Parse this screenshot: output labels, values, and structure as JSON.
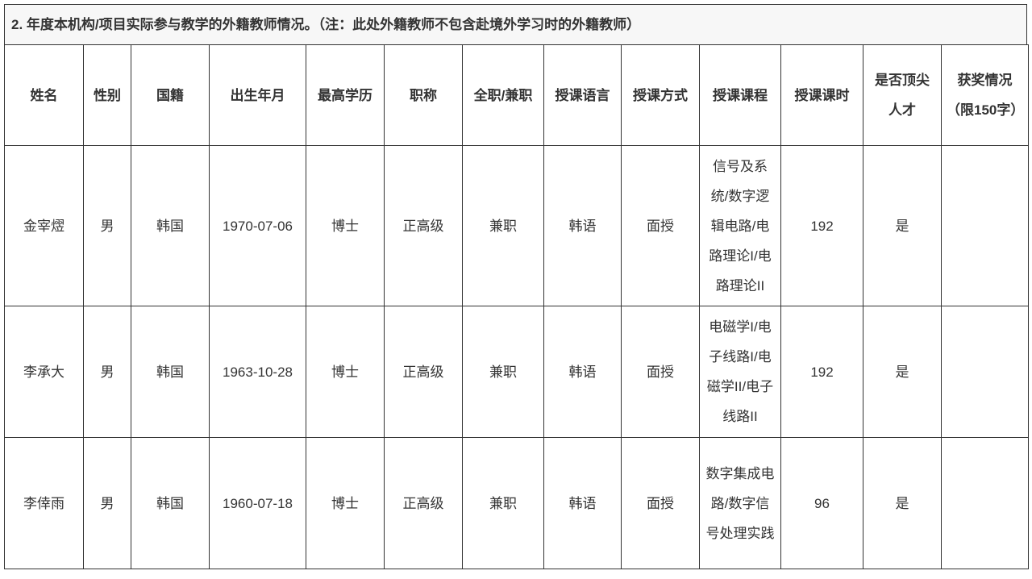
{
  "title": "2. 年度本机构/项目实际参与教学的外籍教师情况。（注：此处外籍教师不包含赴境外学习时的外籍教师）",
  "headers": [
    "姓名",
    "性别",
    "国籍",
    "出生年月",
    "最高学历",
    "职称",
    "全职/兼职",
    "授课语言",
    "授课方式",
    "授课课程",
    "授课课时",
    "是否顶尖人才",
    "获奖情况（限150字）"
  ],
  "rows": [
    [
      "金宰熤",
      "男",
      "韩国",
      "1970-07-06",
      "博士",
      "正高级",
      "兼职",
      "韩语",
      "面授",
      "信号及系统/数字逻辑电路/电路理论I/电路理论II",
      "192",
      "是",
      ""
    ],
    [
      "李承大",
      "男",
      "韩国",
      "1963-10-28",
      "博士",
      "正高级",
      "兼职",
      "韩语",
      "面授",
      "电磁学I/电子线路I/电磁学II/电子线路II",
      "192",
      "是",
      ""
    ],
    [
      "李倖雨",
      "男",
      "韩国",
      "1960-07-18",
      "博士",
      "正高级",
      "兼职",
      "韩语",
      "面授",
      "数字集成电路/数字信号处理实践",
      "96",
      "是",
      ""
    ]
  ]
}
